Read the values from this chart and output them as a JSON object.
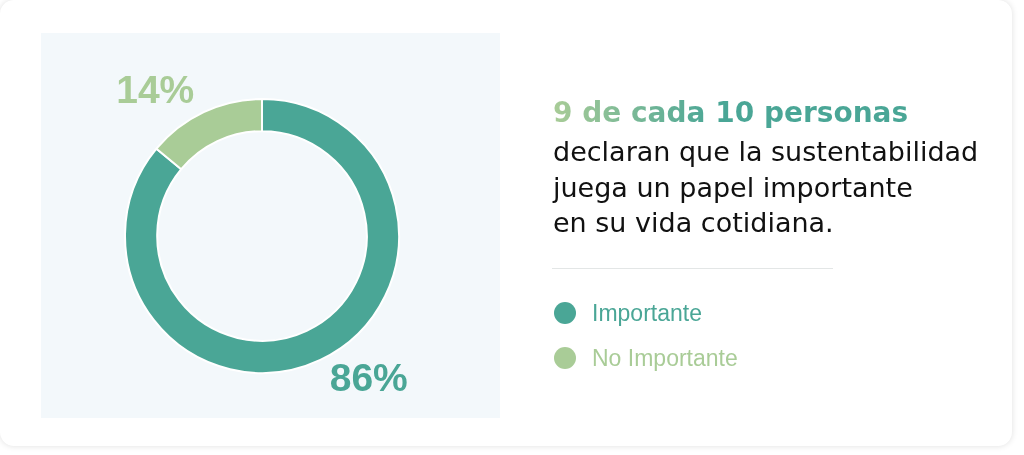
{
  "chart_data": {
    "type": "donut",
    "title": "9 de cada 10 personas",
    "subtitle": "declaran que la sustentabilidad\njuega un papel importante\nen su vida cotidiana.",
    "categories": [
      "Importante",
      "No Importante"
    ],
    "values": [
      86,
      14
    ],
    "colors": [
      "#4aa696",
      "#a9cc97"
    ],
    "value_labels": [
      "86%",
      "14%"
    ],
    "legend": "right"
  }
}
